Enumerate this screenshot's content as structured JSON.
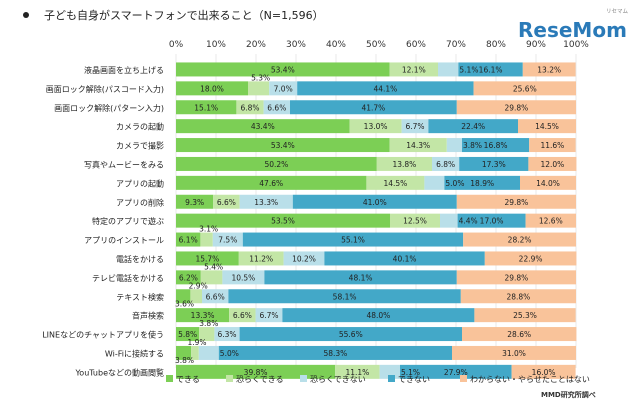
{
  "chart_data": {
    "type": "bar",
    "stacked": true,
    "orientation": "horizontal",
    "title": "子ども自身がスマートフォンで出来ること（N=1,596）",
    "source": "MMD研究所調べ",
    "logo": "ReseMom",
    "logo_ruby": "リセマム",
    "xlim": [
      0,
      100
    ],
    "ticks": [
      "0%",
      "10%",
      "20%",
      "30%",
      "40%",
      "50%",
      "60%",
      "70%",
      "80%",
      "90%",
      "100%"
    ],
    "colors": [
      "#7ccf55",
      "#c3e6a6",
      "#b9dfe9",
      "#43a8c8",
      "#f9c39a"
    ],
    "categories": [
      "液晶画面を立ち上げる",
      "画面ロック解除(パスコード入力)",
      "画面ロック解除(パターン入力)",
      "カメラの起動",
      "カメラで撮影",
      "写真やムービーをみる",
      "アプリの起動",
      "アプリの削除",
      "特定のアプリで遊ぶ",
      "アプリのインストール",
      "電話をかける",
      "テレビ電話をかける",
      "テキスト検索",
      "音声検索",
      "LINEなどのチャットアプリを使う",
      "Wi-Fiに接続する",
      "YouTubeなどの動画閲覧"
    ],
    "series": [
      {
        "name": "できる",
        "values": [
          53.4,
          18.0,
          15.1,
          43.4,
          53.4,
          50.2,
          47.6,
          9.3,
          53.5,
          6.1,
          15.7,
          6.2,
          3.6,
          13.3,
          5.8,
          3.8,
          39.8
        ]
      },
      {
        "name": "恐らくできる",
        "values": [
          12.1,
          5.3,
          6.8,
          13.0,
          14.3,
          13.8,
          14.5,
          6.6,
          12.5,
          3.1,
          11.2,
          5.4,
          2.9,
          6.6,
          3.8,
          1.9,
          11.1
        ]
      },
      {
        "name": "恐らくできない",
        "values": [
          5.1,
          7.0,
          6.6,
          6.7,
          3.8,
          6.8,
          5.0,
          13.3,
          4.4,
          7.5,
          10.2,
          10.5,
          6.6,
          6.7,
          6.3,
          5.0,
          5.1
        ]
      },
      {
        "name": "できない",
        "values": [
          16.1,
          44.1,
          41.7,
          22.4,
          16.8,
          17.3,
          18.9,
          41.0,
          17.0,
          55.1,
          40.1,
          48.1,
          58.1,
          48.0,
          55.6,
          58.3,
          27.9
        ]
      },
      {
        "name": "わからない・やらせたことはない",
        "values": [
          13.2,
          25.6,
          29.8,
          14.5,
          11.6,
          12.0,
          14.0,
          29.8,
          12.6,
          28.2,
          22.9,
          29.8,
          28.8,
          25.3,
          28.6,
          31.0,
          16.0
        ]
      }
    ],
    "labels": [
      [
        "53.4%",
        "12.1%",
        "5.1%",
        "16.1%",
        "13.2%"
      ],
      [
        "18.0%",
        "5.3%",
        "7.0%",
        "44.1%",
        "25.6%"
      ],
      [
        "15.1%",
        "6.8%",
        "6.6%",
        "41.7%",
        "29.8%"
      ],
      [
        "43.4%",
        "13.0%",
        "6.7%",
        "22.4%",
        "14.5%"
      ],
      [
        "53.4%",
        "14.3%",
        "3.8%",
        "16.8%",
        "11.6%"
      ],
      [
        "50.2%",
        "13.8%",
        "6.8%",
        "17.3%",
        "12.0%"
      ],
      [
        "47.6%",
        "14.5%",
        "5.0%",
        "18.9%",
        "14.0%"
      ],
      [
        "9.3%",
        "6.6%",
        "13.3%",
        "41.0%",
        "29.8%"
      ],
      [
        "53.5%",
        "12.5%",
        "4.4%",
        "17.0%",
        "12.6%"
      ],
      [
        "6.1%",
        "3.1%",
        "7.5%",
        "55.1%",
        "28.2%"
      ],
      [
        "15.7%",
        "11.2%",
        "10.2%",
        "40.1%",
        "22.9%"
      ],
      [
        "6.2%",
        "5.4%",
        "10.5%",
        "48.1%",
        "29.8%"
      ],
      [
        "3.6%",
        "2.9%",
        "6.6%",
        "58.1%",
        "28.8%"
      ],
      [
        "13.3%",
        "6.6%",
        "6.7%",
        "48.0%",
        "25.3%"
      ],
      [
        "5.8%",
        "3.8%",
        "6.3%",
        "55.6%",
        "28.6%"
      ],
      [
        "3.8%",
        "1.9%",
        "5.0%",
        "58.3%",
        "31.0%"
      ],
      [
        "39.8%",
        "11.1%",
        "5.1%",
        "27.9%",
        "16.0%"
      ]
    ]
  }
}
